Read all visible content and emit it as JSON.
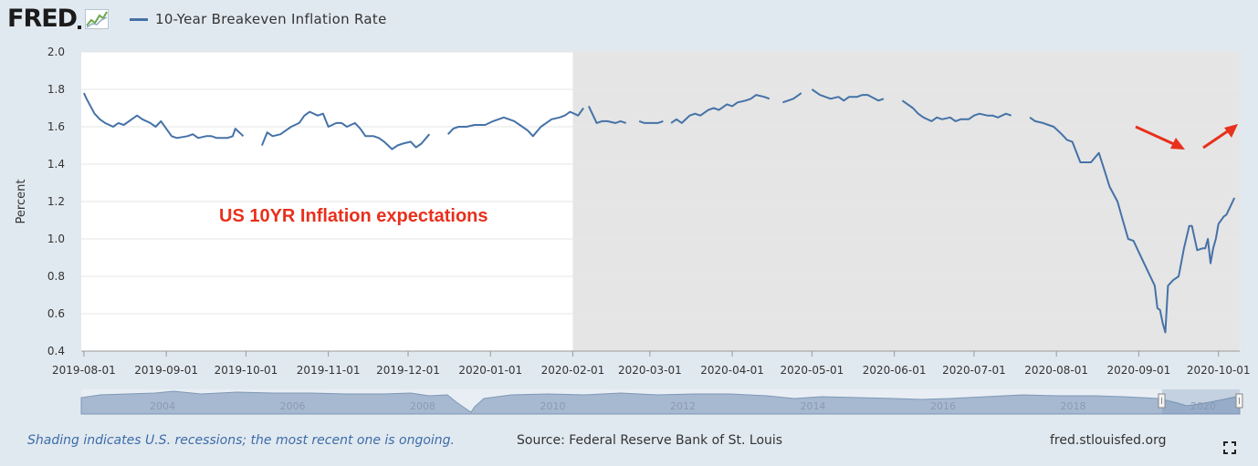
{
  "logo": {
    "text": "FRED",
    "icon": "fred-chart-icon"
  },
  "legend": {
    "label": "10-Year Breakeven Inflation Rate",
    "color": "#4572a7"
  },
  "colors": {
    "line": "#4572a7",
    "recession_shading": "#e5e5e5",
    "annotation": "#e8301c",
    "background": "#e1e9f0",
    "plot_background": "#ffffff"
  },
  "chart_data": {
    "type": "line",
    "title": "",
    "xlabel": "",
    "ylabel": "Percent",
    "ylim": [
      0.4,
      2.0
    ],
    "yticks": [
      0.4,
      0.6,
      0.8,
      1.0,
      1.2,
      1.4,
      1.6,
      1.8,
      2.0
    ],
    "ytick_labels": [
      "0.4",
      "0.6",
      "0.8",
      "1.0",
      "1.2",
      "1.4",
      "1.6",
      "1.8",
      "2.0"
    ],
    "xlim": [
      "2019-07-31",
      "2020-10-09"
    ],
    "xtick_labels": [
      "2019-08-01",
      "2019-09-01",
      "2019-10-01",
      "2019-11-01",
      "2019-12-01",
      "2020-01-01",
      "2020-02-01",
      "2020-03-01",
      "2020-04-01",
      "2020-05-01",
      "2020-06-01",
      "2020-07-01",
      "2020-08-01",
      "2020-09-01",
      "2020-10-01"
    ],
    "grid": true,
    "legend_position": "top-left",
    "recession_start": "2020-02-01",
    "recession_note": "Shading indicates U.S. recessions; the most recent one is ongoing.",
    "annotation": "US 10YR Inflation expectations",
    "series": [
      {
        "name": "10-Year Breakeven Inflation Rate",
        "segments": [
          [
            [
              "2019-08-01",
              1.78
            ],
            [
              "2019-08-02",
              1.75
            ],
            [
              "2019-08-05",
              1.67
            ],
            [
              "2019-08-07",
              1.64
            ],
            [
              "2019-08-09",
              1.62
            ],
            [
              "2019-08-12",
              1.6
            ],
            [
              "2019-08-14",
              1.62
            ],
            [
              "2019-08-16",
              1.61
            ],
            [
              "2019-08-19",
              1.64
            ],
            [
              "2019-08-21",
              1.66
            ],
            [
              "2019-08-23",
              1.64
            ],
            [
              "2019-08-26",
              1.62
            ],
            [
              "2019-08-28",
              1.6
            ],
            [
              "2019-08-30",
              1.63
            ],
            [
              "2019-09-03",
              1.55
            ],
            [
              "2019-09-05",
              1.54
            ],
            [
              "2019-09-09",
              1.55
            ],
            [
              "2019-09-11",
              1.56
            ],
            [
              "2019-09-13",
              1.54
            ],
            [
              "2019-09-16",
              1.55
            ],
            [
              "2019-09-18",
              1.55
            ],
            [
              "2019-09-20",
              1.54
            ],
            [
              "2019-09-24",
              1.54
            ],
            [
              "2019-09-26",
              1.55
            ],
            [
              "2019-09-27",
              1.59
            ],
            [
              "2019-09-30",
              1.55
            ]
          ],
          [
            [
              "2019-10-07",
              1.5
            ],
            [
              "2019-10-09",
              1.57
            ],
            [
              "2019-10-11",
              1.55
            ],
            [
              "2019-10-14",
              1.56
            ],
            [
              "2019-10-16",
              1.58
            ],
            [
              "2019-10-18",
              1.6
            ],
            [
              "2019-10-21",
              1.62
            ],
            [
              "2019-10-23",
              1.66
            ],
            [
              "2019-10-25",
              1.68
            ],
            [
              "2019-10-28",
              1.66
            ],
            [
              "2019-10-30",
              1.67
            ],
            [
              "2019-11-01",
              1.6
            ],
            [
              "2019-11-04",
              1.62
            ],
            [
              "2019-11-06",
              1.62
            ],
            [
              "2019-11-08",
              1.6
            ],
            [
              "2019-11-11",
              1.62
            ],
            [
              "2019-11-13",
              1.59
            ],
            [
              "2019-11-15",
              1.55
            ],
            [
              "2019-11-18",
              1.55
            ],
            [
              "2019-11-20",
              1.54
            ],
            [
              "2019-11-22",
              1.52
            ],
            [
              "2019-11-25",
              1.48
            ],
            [
              "2019-11-27",
              1.5
            ],
            [
              "2019-11-29",
              1.51
            ],
            [
              "2019-12-02",
              1.52
            ],
            [
              "2019-12-04",
              1.49
            ],
            [
              "2019-12-06",
              1.51
            ],
            [
              "2019-12-09",
              1.56
            ]
          ],
          [
            [
              "2019-12-16",
              1.56
            ],
            [
              "2019-12-18",
              1.59
            ],
            [
              "2019-12-20",
              1.6
            ],
            [
              "2019-12-23",
              1.6
            ],
            [
              "2019-12-26",
              1.61
            ],
            [
              "2019-12-30",
              1.61
            ],
            [
              "2020-01-02",
              1.63
            ],
            [
              "2020-01-06",
              1.65
            ],
            [
              "2020-01-08",
              1.64
            ],
            [
              "2020-01-10",
              1.63
            ],
            [
              "2020-01-13",
              1.6
            ],
            [
              "2020-01-15",
              1.58
            ],
            [
              "2020-01-17",
              1.55
            ],
            [
              "2020-01-20",
              1.6
            ],
            [
              "2020-01-22",
              1.62
            ],
            [
              "2020-01-24",
              1.64
            ],
            [
              "2020-01-27",
              1.65
            ],
            [
              "2020-01-29",
              1.66
            ],
            [
              "2020-01-31",
              1.68
            ],
            [
              "2020-02-03",
              1.66
            ],
            [
              "2020-02-05",
              1.7
            ]
          ],
          [
            [
              "2020-02-07",
              1.71
            ],
            [
              "2020-02-10",
              1.62
            ],
            [
              "2020-02-12",
              1.63
            ],
            [
              "2020-02-14",
              1.63
            ],
            [
              "2020-02-17",
              1.62
            ],
            [
              "2020-02-19",
              1.63
            ],
            [
              "2020-02-21",
              1.62
            ]
          ],
          [
            [
              "2020-02-26",
              1.63
            ],
            [
              "2020-02-28",
              1.62
            ],
            [
              "2020-03-02",
              1.62
            ],
            [
              "2020-03-04",
              1.62
            ],
            [
              "2020-03-06",
              1.63
            ]
          ],
          [
            [
              "2020-03-09",
              1.62
            ],
            [
              "2020-03-11",
              1.64
            ],
            [
              "2020-03-13",
              1.62
            ],
            [
              "2020-03-16",
              1.66
            ],
            [
              "2020-03-18",
              1.67
            ],
            [
              "2020-03-20",
              1.66
            ],
            [
              "2020-03-23",
              1.69
            ],
            [
              "2020-03-25",
              1.7
            ],
            [
              "2020-03-27",
              1.69
            ],
            [
              "2020-03-30",
              1.72
            ],
            [
              "2020-04-01",
              1.71
            ],
            [
              "2020-04-03",
              1.73
            ],
            [
              "2020-04-06",
              1.74
            ],
            [
              "2020-04-08",
              1.75
            ],
            [
              "2020-04-10",
              1.77
            ],
            [
              "2020-04-13",
              1.76
            ],
            [
              "2020-04-15",
              1.75
            ]
          ],
          [
            [
              "2020-04-20",
              1.73
            ],
            [
              "2020-04-22",
              1.74
            ],
            [
              "2020-04-24",
              1.75
            ],
            [
              "2020-04-27",
              1.78
            ]
          ],
          [
            [
              "2020-05-01",
              1.8
            ],
            [
              "2020-05-04",
              1.77
            ],
            [
              "2020-05-06",
              1.76
            ],
            [
              "2020-05-08",
              1.75
            ],
            [
              "2020-05-11",
              1.76
            ],
            [
              "2020-05-13",
              1.74
            ],
            [
              "2020-05-15",
              1.76
            ],
            [
              "2020-05-18",
              1.76
            ],
            [
              "2020-05-20",
              1.77
            ],
            [
              "2020-05-22",
              1.77
            ],
            [
              "2020-05-26",
              1.74
            ],
            [
              "2020-05-28",
              1.75
            ]
          ],
          [
            [
              "2020-06-04",
              1.74
            ],
            [
              "2020-06-08",
              1.7
            ],
            [
              "2020-06-10",
              1.67
            ],
            [
              "2020-06-12",
              1.65
            ],
            [
              "2020-06-15",
              1.63
            ],
            [
              "2020-06-17",
              1.65
            ],
            [
              "2020-06-19",
              1.64
            ],
            [
              "2020-06-22",
              1.65
            ],
            [
              "2020-06-24",
              1.63
            ],
            [
              "2020-06-26",
              1.64
            ],
            [
              "2020-06-29",
              1.64
            ],
            [
              "2020-07-01",
              1.66
            ],
            [
              "2020-07-03",
              1.67
            ],
            [
              "2020-07-06",
              1.66
            ],
            [
              "2020-07-08",
              1.66
            ],
            [
              "2020-07-10",
              1.65
            ],
            [
              "2020-07-13",
              1.67
            ],
            [
              "2020-07-15",
              1.66
            ]
          ],
          [
            [
              "2020-07-22",
              1.65
            ],
            [
              "2020-07-24",
              1.63
            ],
            [
              "2020-07-27",
              1.62
            ],
            [
              "2020-07-29",
              1.61
            ],
            [
              "2020-07-31",
              1.6
            ],
            [
              "2020-08-03",
              1.56
            ],
            [
              "2020-08-05",
              1.53
            ],
            [
              "2020-08-07",
              1.52
            ],
            [
              "2020-08-10",
              1.41
            ],
            [
              "2020-08-12",
              1.41
            ],
            [
              "2020-08-14",
              1.41
            ],
            [
              "2020-08-17",
              1.46
            ],
            [
              "2020-08-19",
              1.37
            ],
            [
              "2020-08-21",
              1.28
            ],
            [
              "2020-08-24",
              1.2
            ],
            [
              "2020-08-26",
              1.1
            ],
            [
              "2020-08-28",
              1.0
            ],
            [
              "2020-08-30",
              0.99
            ],
            [
              "2020-09-01",
              0.93
            ],
            [
              "2020-09-03",
              0.87
            ],
            [
              "2020-09-05",
              0.81
            ],
            [
              "2020-09-07",
              0.75
            ],
            [
              "2020-09-08",
              0.63
            ],
            [
              "2020-09-09",
              0.62
            ],
            [
              "2020-09-10",
              0.55
            ],
            [
              "2020-09-11",
              0.5
            ],
            [
              "2020-09-12",
              0.75
            ],
            [
              "2020-09-14",
              0.78
            ],
            [
              "2020-09-16",
              0.8
            ],
            [
              "2020-09-18",
              0.95
            ],
            [
              "2020-09-20",
              1.07
            ],
            [
              "2020-09-21",
              1.07
            ],
            [
              "2020-09-23",
              0.94
            ],
            [
              "2020-09-25",
              0.95
            ],
            [
              "2020-09-26",
              0.95
            ],
            [
              "2020-09-27",
              1.0
            ],
            [
              "2020-09-28",
              0.87
            ],
            [
              "2020-09-29",
              0.95
            ],
            [
              "2020-09-30",
              1.0
            ],
            [
              "2020-10-01",
              1.08
            ],
            [
              "2020-10-03",
              1.12
            ],
            [
              "2020-10-04",
              1.13
            ],
            [
              "2020-10-05",
              1.16
            ],
            [
              "2020-10-06",
              1.19
            ],
            [
              "2020-10-07",
              1.22
            ]
          ]
        ]
      }
    ]
  },
  "navigator": {
    "tick_labels": [
      "2004",
      "2006",
      "2008",
      "2010",
      "2012",
      "2014",
      "2016",
      "2018",
      "2020"
    ]
  },
  "footer": {
    "note": "Shading indicates U.S. recessions; the most recent one is ongoing.",
    "source": "Source: Federal Reserve Bank of St. Louis",
    "url": "fred.stlouisfed.org",
    "expand_icon": "expand-icon"
  }
}
